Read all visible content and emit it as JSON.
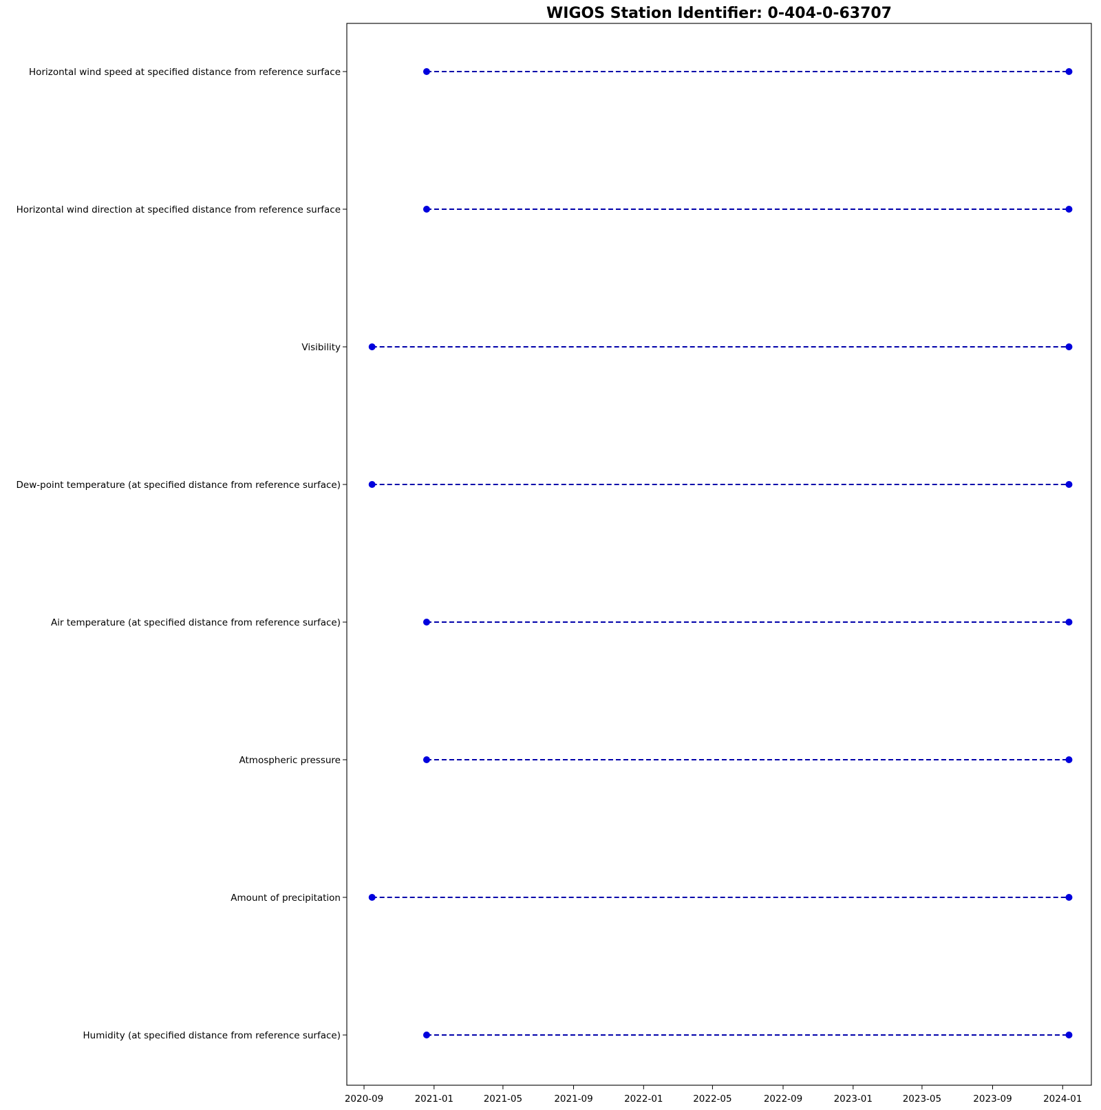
{
  "chart_data": {
    "type": "timeline",
    "title": "WIGOS Station Identifier: 0-404-0-63707",
    "xlabel": "",
    "ylabel": "",
    "x_ticks": [
      "2020-09",
      "2021-01",
      "2021-05",
      "2021-09",
      "2022-01",
      "2022-05",
      "2022-09",
      "2023-01",
      "2023-05",
      "2023-09",
      "2024-01"
    ],
    "xlim": [
      "2020-08-02",
      "2024-02-20"
    ],
    "grid": false,
    "marker_color": "#0000dd",
    "line_color": "#0000aa",
    "line_style": "dashed",
    "series": [
      {
        "label": "Horizontal wind speed at specified distance from reference surface",
        "start": "2020-12-19",
        "end": "2024-01-12"
      },
      {
        "label": "Horizontal wind direction at specified distance from reference surface",
        "start": "2020-12-19",
        "end": "2024-01-12"
      },
      {
        "label": "Visibility",
        "start": "2020-09-15",
        "end": "2024-01-12"
      },
      {
        "label": "Dew-point temperature (at specified distance from reference surface)",
        "start": "2020-09-15",
        "end": "2024-01-12"
      },
      {
        "label": "Air temperature (at specified distance from reference surface)",
        "start": "2020-12-19",
        "end": "2024-01-12"
      },
      {
        "label": "Atmospheric pressure",
        "start": "2020-12-19",
        "end": "2024-01-12"
      },
      {
        "label": "Amount of precipitation",
        "start": "2020-09-15",
        "end": "2024-01-12"
      },
      {
        "label": "Humidity  (at specified distance from reference surface)",
        "start": "2020-12-19",
        "end": "2024-01-12"
      }
    ]
  }
}
